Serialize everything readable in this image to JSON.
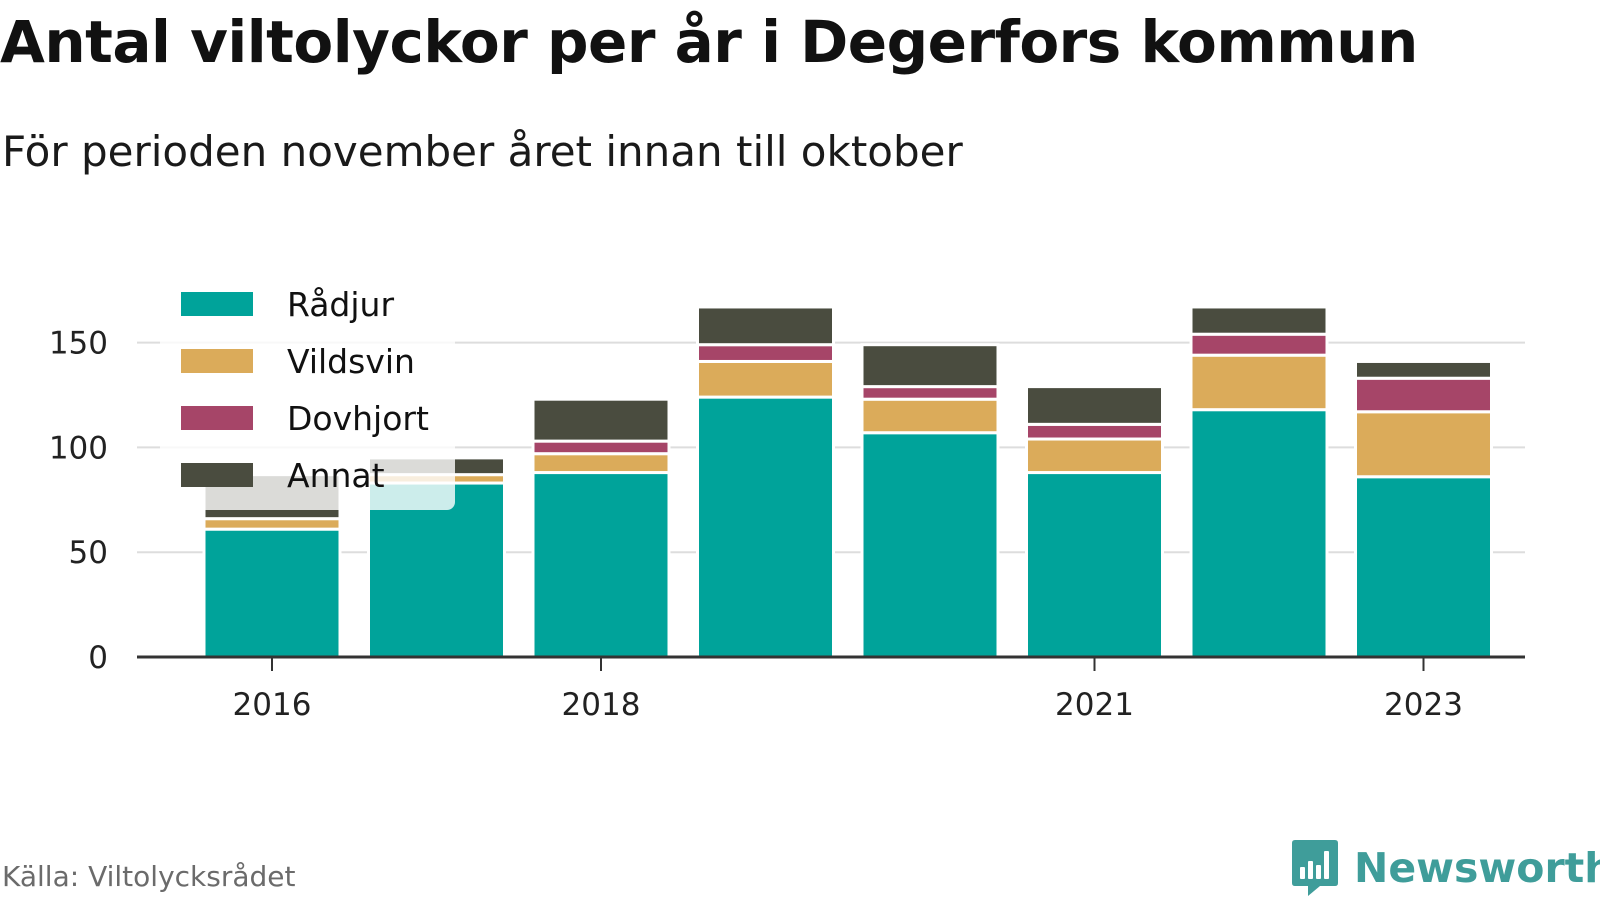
{
  "title": "Antal viltolyckor per år i Degerfors kommun",
  "subtitle": "För perioden november året innan till oktober",
  "source": "Källa: Viltolycksrådet",
  "brand": {
    "name": "Newsworthy",
    "icon": "newsworthy-logo-icon",
    "color": "#3f9d9a"
  },
  "chart_data": {
    "type": "bar",
    "stacked": true,
    "categories": [
      "2016",
      "2017",
      "2018",
      "2019",
      "2020",
      "2021",
      "2022",
      "2023"
    ],
    "xtick_labels": [
      "2016",
      "",
      "2018",
      "",
      "",
      "2021",
      "",
      "2023"
    ],
    "series": [
      {
        "name": "Rådjur",
        "color": "#00a39a",
        "values": [
          61,
          83,
          88,
          124,
          107,
          88,
          118,
          86
        ]
      },
      {
        "name": "Vildsvin",
        "color": "#dbab5a",
        "values": [
          5,
          4,
          9,
          17,
          16,
          16,
          26,
          31
        ]
      },
      {
        "name": "Dovhjort",
        "color": "#a64568",
        "values": [
          0,
          0,
          6,
          8,
          6,
          7,
          10,
          16
        ]
      },
      {
        "name": "Annat",
        "color": "#4a4c3f",
        "values": [
          21,
          8,
          20,
          18,
          20,
          18,
          13,
          8
        ]
      }
    ],
    "yticks": [
      0,
      50,
      100,
      150
    ],
    "ylim": [
      0,
      175
    ],
    "grid": true,
    "legend_position": "top-left",
    "xlabel": "",
    "ylabel": ""
  }
}
